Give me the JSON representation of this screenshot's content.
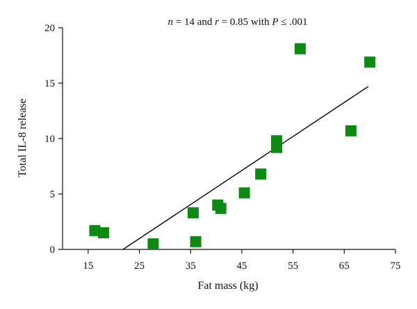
{
  "chart_data": {
    "type": "scatter",
    "xlabel": "Fat mass (kg)",
    "ylabel": "Total IL-8 release",
    "xlim": [
      10,
      75
    ],
    "ylim": [
      0,
      20
    ],
    "x_ticks": [
      15,
      25,
      35,
      45,
      55,
      65,
      75
    ],
    "y_ticks": [
      0,
      5,
      10,
      15,
      20
    ],
    "grid": false,
    "annotation": {
      "n_symbol": "n",
      "n_text": " = 14 and ",
      "r_symbol": "r",
      "r_text": " = 0.85 with ",
      "p_symbol": "P",
      "p_text": " ≤ .001"
    },
    "marker_color": "#0c8a12",
    "points": [
      {
        "x": 16.3,
        "y": 1.7
      },
      {
        "x": 18.0,
        "y": 1.5
      },
      {
        "x": 27.7,
        "y": 0.5
      },
      {
        "x": 35.5,
        "y": 3.3
      },
      {
        "x": 36.0,
        "y": 0.7
      },
      {
        "x": 40.3,
        "y": 4.0
      },
      {
        "x": 40.9,
        "y": 3.7
      },
      {
        "x": 45.5,
        "y": 5.1
      },
      {
        "x": 48.7,
        "y": 6.8
      },
      {
        "x": 51.8,
        "y": 9.8
      },
      {
        "x": 51.8,
        "y": 9.2
      },
      {
        "x": 56.4,
        "y": 18.1
      },
      {
        "x": 66.3,
        "y": 10.7
      },
      {
        "x": 70.0,
        "y": 16.9
      }
    ],
    "trendline": {
      "x": [
        21.8,
        69.7
      ],
      "y": [
        0.0,
        14.7
      ]
    }
  }
}
